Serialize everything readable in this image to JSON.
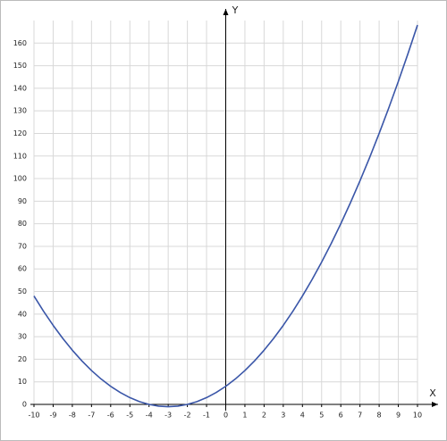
{
  "chart_data": {
    "type": "line",
    "x_label": "X",
    "y_label": "Y",
    "x": [
      -10,
      -9.5,
      -9,
      -8.5,
      -8,
      -7.5,
      -7,
      -6.5,
      -6,
      -5.5,
      -5,
      -4.5,
      -4,
      -3.5,
      -3,
      -2.5,
      -2,
      -1.5,
      -1,
      -0.5,
      0,
      0.5,
      1,
      1.5,
      2,
      2.5,
      3,
      3.5,
      4,
      4.5,
      5,
      5.5,
      6,
      6.5,
      7,
      7.5,
      8,
      8.5,
      9,
      9.5,
      10
    ],
    "values": [
      48,
      41.25,
      35,
      29.25,
      24,
      19.25,
      15,
      11.25,
      8,
      5.25,
      3,
      1.25,
      0,
      -0.75,
      -1,
      -0.75,
      0,
      1.25,
      3,
      5.25,
      8,
      11.25,
      15,
      19.25,
      24,
      29.25,
      35,
      41.25,
      48,
      55.25,
      63,
      71.25,
      80,
      89.25,
      99,
      109.25,
      120,
      131.25,
      143,
      155.25,
      168
    ],
    "color": "#3a56a8",
    "xlim": [
      -10,
      10
    ],
    "xticks": [
      -10,
      -9,
      -8,
      -7,
      -6,
      -5,
      -4,
      -3,
      -2,
      -1,
      0,
      1,
      2,
      3,
      4,
      5,
      6,
      7,
      8,
      9,
      10
    ],
    "ylim": [
      0,
      170
    ],
    "yticks": [
      0,
      10,
      20,
      30,
      40,
      50,
      60,
      70,
      80,
      90,
      100,
      110,
      120,
      130,
      140,
      150,
      160
    ],
    "grid": true
  }
}
